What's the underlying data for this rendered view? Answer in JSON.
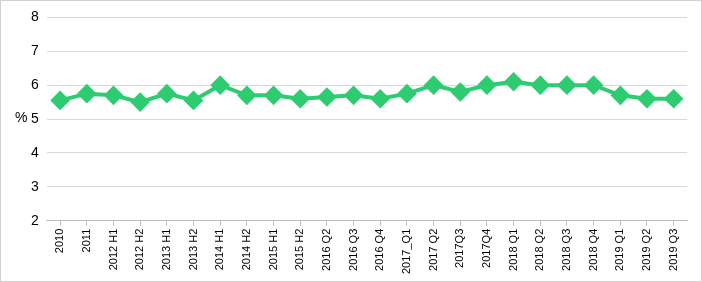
{
  "chart_data": {
    "type": "line",
    "y_label": "%",
    "categories": [
      "2010",
      "2011",
      "2012 H1",
      "2012 H2",
      "2013 H1",
      "2013 H2",
      "2014 H1",
      "2014 H2",
      "2015 H1",
      "2015 H2",
      "2016 Q2",
      "2016 Q3",
      "2016 Q4",
      "2017_Q1",
      "2017 Q2",
      "2017Q3",
      "2017Q4",
      "2018 Q1",
      "2018 Q2",
      "2018 Q3",
      "2018 Q4",
      "2019 Q1",
      "2019 Q2",
      "2019 Q3"
    ],
    "values": [
      5.55,
      5.75,
      5.7,
      5.5,
      5.75,
      5.55,
      6.0,
      5.7,
      5.7,
      5.6,
      5.65,
      5.7,
      5.6,
      5.75,
      6.0,
      5.8,
      6.0,
      6.1,
      6.0,
      6.0,
      6.0,
      5.7,
      5.6,
      5.6
    ],
    "color": "#2ecc71",
    "marker": "diamond",
    "ylim": [
      2,
      8
    ],
    "yticks": [
      2,
      3,
      4,
      5,
      6,
      7,
      8
    ],
    "grid": true
  }
}
